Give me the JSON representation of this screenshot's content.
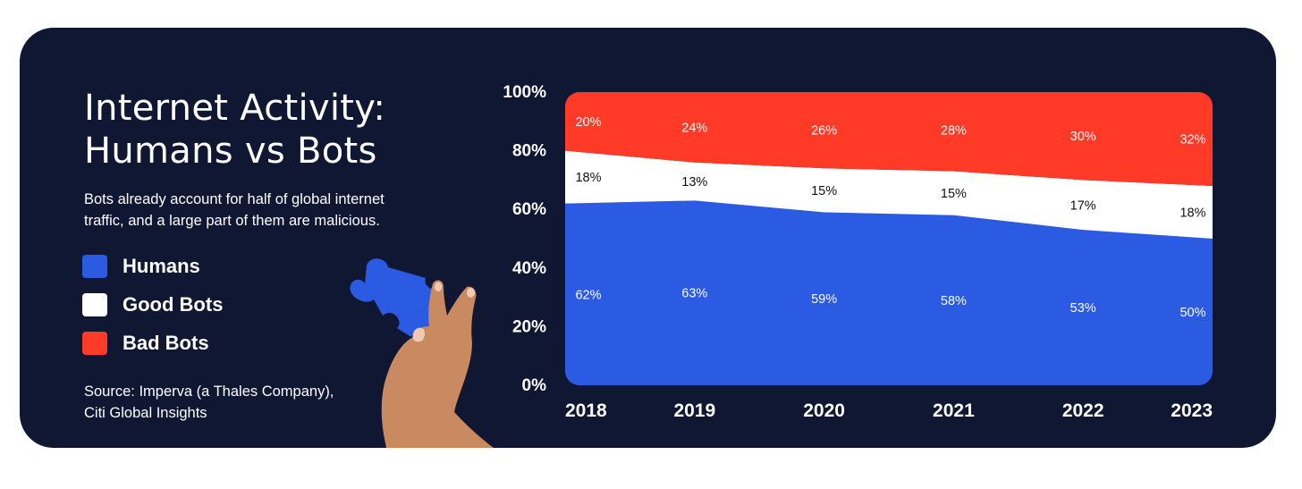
{
  "title_lines": [
    "Internet Activity:",
    "Humans vs Bots"
  ],
  "subtitle": "Bots already account for half of global internet traffic, and a large part of them are malicious.",
  "source_lines": [
    "Source: Imperva (a Thales Company),",
    "Citi Global Insights"
  ],
  "colors": {
    "background": "#0f1733",
    "humans": "#2b5be3",
    "good_bots": "#ffffff",
    "bad_bots": "#ff3b28",
    "skin": "#c98a62",
    "nail": "#f3c9b5"
  },
  "illustration": {
    "icon": "puzzle-piece-in-hand"
  },
  "legend": [
    {
      "label": "Humans",
      "color": "#2b5be3"
    },
    {
      "label": "Good Bots",
      "color": "#ffffff"
    },
    {
      "label": "Bad Bots",
      "color": "#ff3b28"
    }
  ],
  "chart_data": {
    "type": "area",
    "stacked": true,
    "x": [
      "2018",
      "2019",
      "2020",
      "2021",
      "2022",
      "2023"
    ],
    "y_ticks": [
      "0%",
      "20%",
      "40%",
      "60%",
      "80%",
      "100%"
    ],
    "ylim": [
      0,
      100
    ],
    "series": [
      {
        "name": "Humans",
        "values": [
          62,
          63,
          59,
          58,
          53,
          50
        ],
        "labels": [
          "62%",
          "63%",
          "59%",
          "58%",
          "53%",
          "50%"
        ],
        "color": "#2b5be3",
        "label_color": "#ffffff"
      },
      {
        "name": "Good Bots",
        "values": [
          18,
          13,
          15,
          15,
          17,
          18
        ],
        "labels": [
          "18%",
          "13%",
          "15%",
          "15%",
          "17%",
          "18%"
        ],
        "color": "#ffffff",
        "label_color": "#111111"
      },
      {
        "name": "Bad Bots",
        "values": [
          20,
          24,
          26,
          28,
          30,
          32
        ],
        "labels": [
          "20%",
          "24%",
          "26%",
          "28%",
          "30%",
          "32%"
        ],
        "color": "#ff3b28",
        "label_color": "#ffffff"
      }
    ],
    "legend_position": "left",
    "grid": false
  }
}
